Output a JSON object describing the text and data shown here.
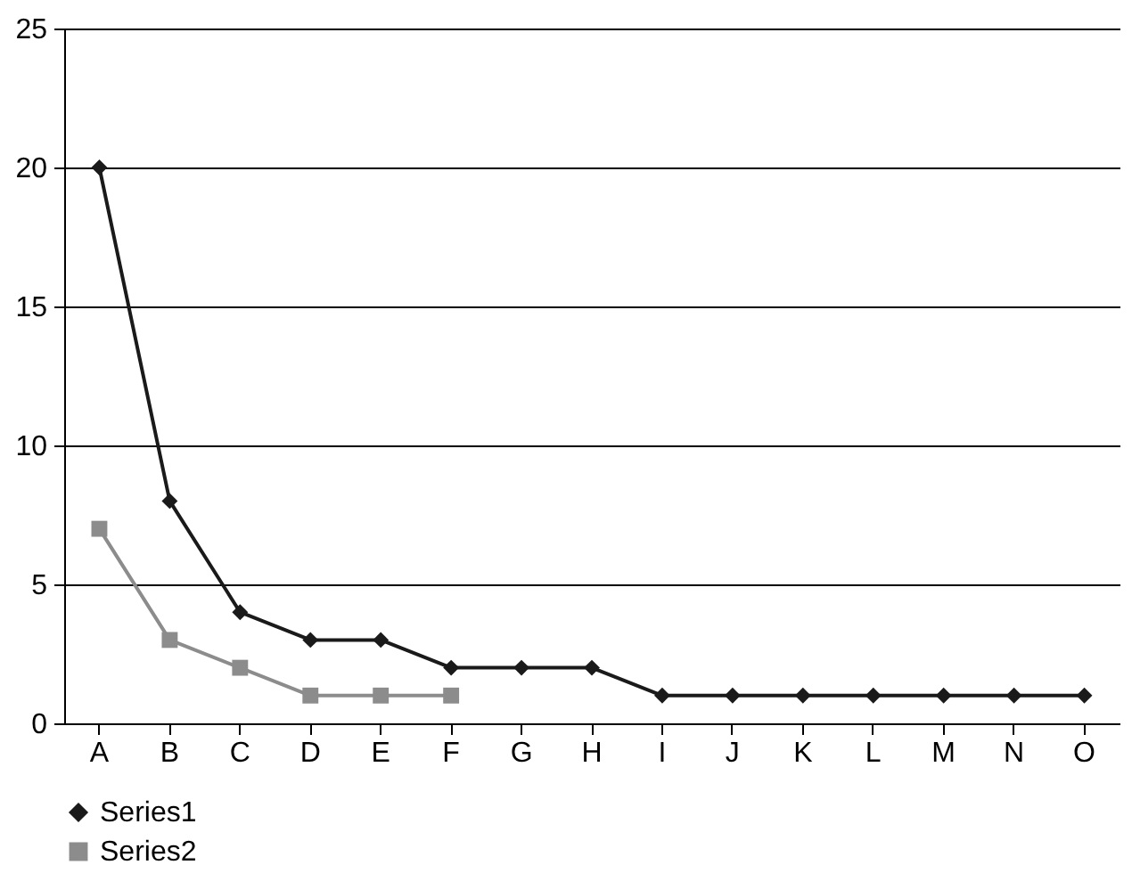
{
  "chart_data": {
    "type": "line",
    "categories": [
      "A",
      "B",
      "C",
      "D",
      "E",
      "F",
      "G",
      "H",
      "I",
      "J",
      "K",
      "L",
      "M",
      "N",
      "O"
    ],
    "series": [
      {
        "name": "Series1",
        "color": "#1a1a1a",
        "marker": "diamond",
        "values": [
          20,
          8,
          4,
          3,
          3,
          2,
          2,
          2,
          1,
          1,
          1,
          1,
          1,
          1,
          1
        ]
      },
      {
        "name": "Series2",
        "color": "#8c8c8c",
        "marker": "square",
        "values": [
          7,
          3,
          2,
          1,
          1,
          1,
          null,
          null,
          null,
          null,
          null,
          null,
          null,
          null,
          null
        ]
      }
    ],
    "ylim": [
      0,
      25
    ],
    "yticks": [
      0,
      5,
      10,
      15,
      20,
      25
    ],
    "grid": "y",
    "legend": "bottom"
  }
}
